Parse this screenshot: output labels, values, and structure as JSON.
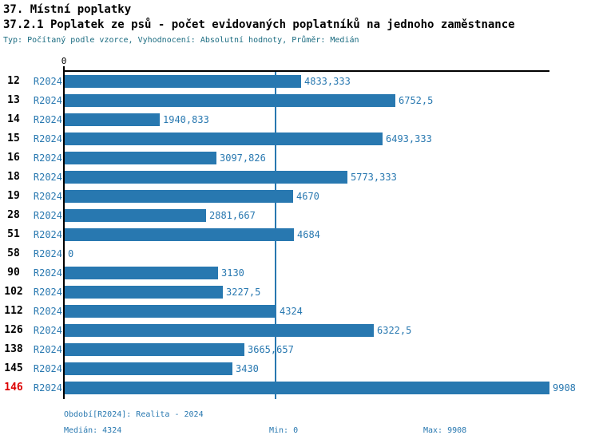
{
  "title1": "37. Místní poplatky",
  "title2": "37.2.1 Poplatek ze psů - počet evidovaných poplatníků na jednoho zaměstnance",
  "subtitle": "Typ: Počítaný podle vzorce, Vyhodnocení: Absolutní hodnoty, Průměr: Medián",
  "colors": {
    "bar_blue": "#2878b0",
    "text_blue": "#2878b0",
    "subtitle_teal": "#1a6b80",
    "highlight_red": "#dd0000",
    "axis_black": "#000000"
  },
  "chart_data": {
    "type": "bar",
    "orientation": "horizontal",
    "series_label": "R2024",
    "x_origin_label": "0",
    "xlim": [
      0,
      9908
    ],
    "median_value": 4324,
    "rows": [
      {
        "id": "12",
        "value": 4833.333,
        "label": "4833,333",
        "highlight": false
      },
      {
        "id": "13",
        "value": 6752.5,
        "label": "6752,5",
        "highlight": false
      },
      {
        "id": "14",
        "value": 1940.833,
        "label": "1940,833",
        "highlight": false
      },
      {
        "id": "15",
        "value": 6493.333,
        "label": "6493,333",
        "highlight": false
      },
      {
        "id": "16",
        "value": 3097.826,
        "label": "3097,826",
        "highlight": false
      },
      {
        "id": "18",
        "value": 5773.333,
        "label": "5773,333",
        "highlight": false
      },
      {
        "id": "19",
        "value": 4670,
        "label": "4670",
        "highlight": false
      },
      {
        "id": "28",
        "value": 2881.667,
        "label": "2881,667",
        "highlight": false
      },
      {
        "id": "51",
        "value": 4684,
        "label": "4684",
        "highlight": false
      },
      {
        "id": "58",
        "value": 0,
        "label": "0",
        "highlight": false
      },
      {
        "id": "90",
        "value": 3130,
        "label": "3130",
        "highlight": false
      },
      {
        "id": "102",
        "value": 3227.5,
        "label": "3227,5",
        "highlight": false
      },
      {
        "id": "112",
        "value": 4324,
        "label": "4324",
        "highlight": false
      },
      {
        "id": "126",
        "value": 6322.5,
        "label": "6322,5",
        "highlight": false
      },
      {
        "id": "138",
        "value": 3665.657,
        "label": "3665,657",
        "highlight": false
      },
      {
        "id": "145",
        "value": 3430,
        "label": "3430",
        "highlight": false
      },
      {
        "id": "146",
        "value": 9908,
        "label": "9908",
        "highlight": true
      }
    ]
  },
  "footer": {
    "period": "Období[R2024]: Realita - 2024",
    "median": "Medián: 4324",
    "min": "Min: 0",
    "max": "Max: 9908"
  }
}
